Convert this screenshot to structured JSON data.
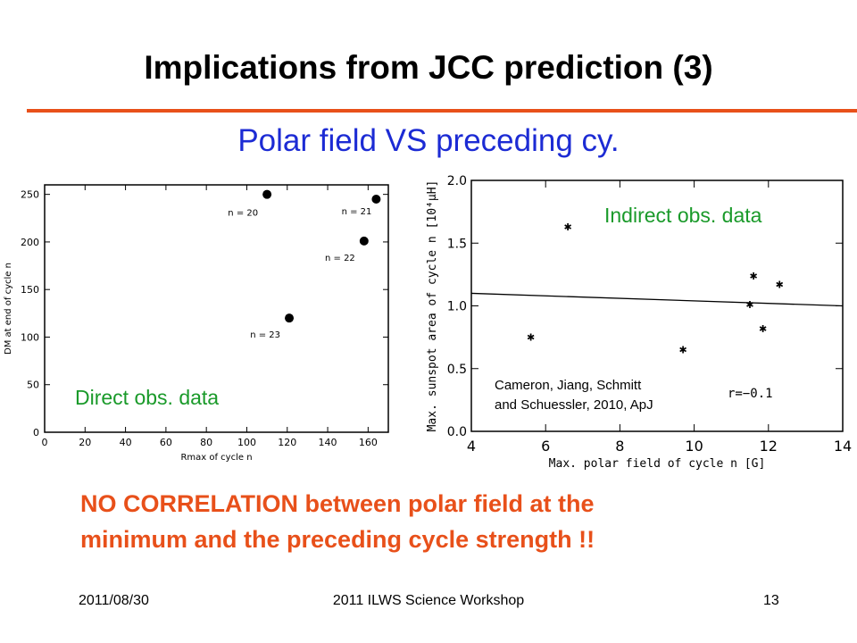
{
  "slide": {
    "title": "Implications from JCC prediction (3)",
    "subtitle": "Polar field VS preceding cy.",
    "conclusion_line1": "NO CORRELATION between polar field at the",
    "conclusion_line2": "minimum and the preceding cycle strength !!",
    "footer_date": "2011/08/30",
    "footer_event": "2011 ILWS Science Workshop",
    "footer_page": "13",
    "colors": {
      "title_rule": "#e8501a",
      "subtitle": "#1c2bd4",
      "panel_label": "#1a9a2a",
      "conclusion": "#e8501a"
    }
  },
  "chart_data": [
    {
      "type": "scatter",
      "panel_label": "Direct obs. data",
      "xlabel": "Rmax of cycle n",
      "ylabel": "DM at end of cycle n",
      "xlim": [
        0,
        170
      ],
      "ylim": [
        0,
        260
      ],
      "xticks": [
        0,
        20,
        40,
        60,
        80,
        100,
        120,
        140,
        160
      ],
      "yticks": [
        0,
        50,
        100,
        150,
        200,
        250
      ],
      "points": [
        {
          "x": 110,
          "y": 250,
          "label": "n = 20"
        },
        {
          "x": 164,
          "y": 245,
          "label": "n = 21"
        },
        {
          "x": 158,
          "y": 201,
          "label": "n = 22"
        },
        {
          "x": 121,
          "y": 120,
          "label": "n = 23"
        }
      ]
    },
    {
      "type": "scatter",
      "panel_label": "Indirect obs. data",
      "xlabel": "Max. polar field of cycle n [G]",
      "ylabel": "Max. sunspot area of cycle n [10⁴μH]",
      "xlim": [
        4,
        14
      ],
      "ylim": [
        0.0,
        2.0
      ],
      "xticks": [
        "4",
        "6",
        "8",
        "10",
        "12",
        "14"
      ],
      "yticks": [
        "0.0",
        "0.5",
        "1.0",
        "1.5",
        "2.0"
      ],
      "annotation_line1": "Cameron, Jiang, Schmitt",
      "annotation_line2": "and Schuessler, 2010, ApJ",
      "correlation_label": "r=−0.1",
      "points": [
        {
          "x": 5.6,
          "y": 0.75
        },
        {
          "x": 6.6,
          "y": 1.63
        },
        {
          "x": 9.7,
          "y": 0.65
        },
        {
          "x": 11.5,
          "y": 1.01
        },
        {
          "x": 11.6,
          "y": 1.24
        },
        {
          "x": 11.85,
          "y": 0.82
        },
        {
          "x": 12.3,
          "y": 1.17
        }
      ],
      "fit_line": [
        {
          "x": 4,
          "y": 1.1
        },
        {
          "x": 14,
          "y": 1.0
        }
      ]
    }
  ]
}
